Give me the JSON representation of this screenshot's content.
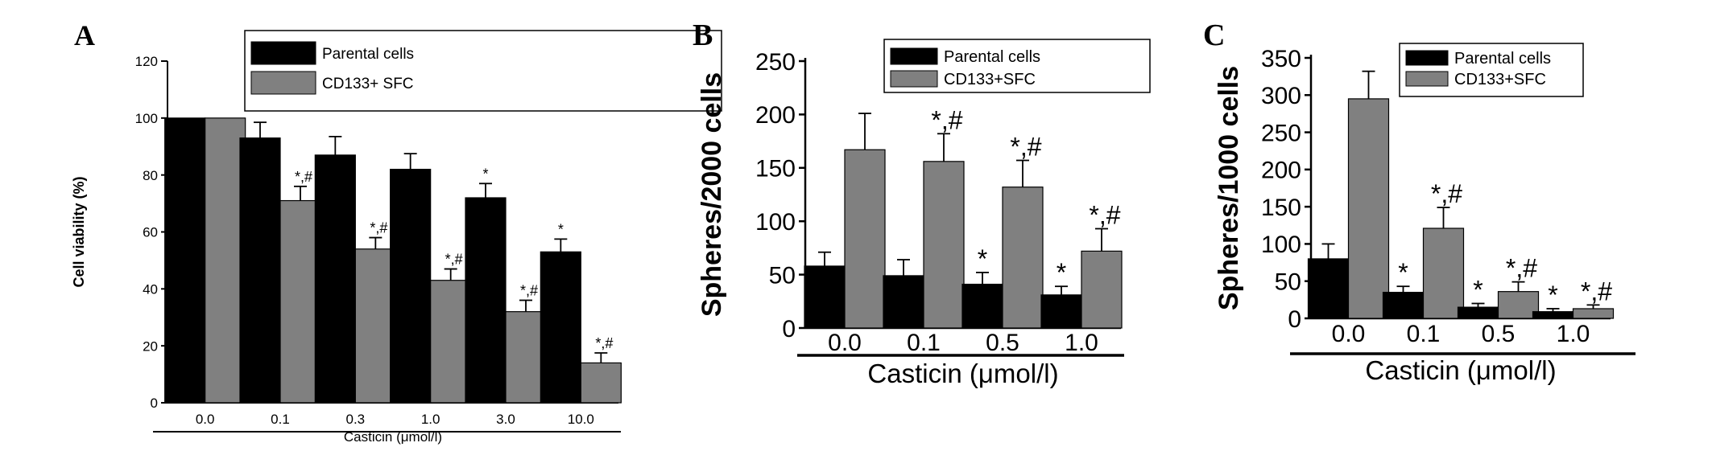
{
  "chart_data": [
    {
      "panel_label": "A",
      "type": "bar",
      "xlabel": "Casticin (μmol/l)",
      "ylabel": "Cell viability (%)",
      "ylim": [
        0,
        120
      ],
      "yticks": [
        "0",
        "20",
        "40",
        "60",
        "80",
        "100",
        "120"
      ],
      "categories": [
        "0.0",
        "0.1",
        "0.3",
        "1.0",
        "3.0",
        "10.0"
      ],
      "legend_position": "top-right",
      "series": [
        {
          "name": "Parental cells",
          "color": "#000000",
          "values": [
            100,
            93,
            87,
            82,
            72,
            53
          ],
          "errors": [
            0,
            5.5,
            6.5,
            5.5,
            5,
            4.5
          ],
          "annotations": [
            "",
            "",
            "",
            "",
            "*",
            "*"
          ]
        },
        {
          "name": "CD133+ SFC",
          "color": "#808080",
          "values": [
            100,
            71,
            54,
            43,
            32,
            14
          ],
          "errors": [
            0,
            5,
            4,
            4,
            4,
            3.5
          ],
          "annotations": [
            "",
            "*,#",
            "*,#",
            "*,#",
            "*,#",
            "*,#"
          ]
        }
      ]
    },
    {
      "panel_label": "B",
      "type": "bar",
      "xlabel": "Casticin (μmol/l)",
      "ylabel": "Spheres/2000 cells",
      "ylim": [
        0,
        250
      ],
      "yticks": [
        "0",
        "50",
        "100",
        "150",
        "200",
        "250"
      ],
      "categories": [
        "0.0",
        "0.1",
        "0.5",
        "1.0"
      ],
      "legend_position": "top-right",
      "series": [
        {
          "name": "Parental cells",
          "color": "#000000",
          "values": [
            58,
            49,
            41,
            31
          ],
          "errors": [
            13,
            15,
            11,
            8
          ],
          "annotations": [
            "",
            "",
            "*",
            "*"
          ]
        },
        {
          "name": "CD133+SFC",
          "color": "#808080",
          "values": [
            167,
            156,
            132,
            72
          ],
          "errors": [
            34,
            26,
            25,
            21
          ],
          "annotations": [
            "",
            "*,#",
            "*,#",
            "*,#"
          ]
        }
      ]
    },
    {
      "panel_label": "C",
      "type": "bar",
      "xlabel": "Casticin (μmol/l)",
      "ylabel": "Spheres/1000 cells",
      "ylim": [
        0,
        350
      ],
      "yticks": [
        "0",
        "50",
        "100",
        "150",
        "200",
        "250",
        "300",
        "350"
      ],
      "categories": [
        "0.0",
        "0.1",
        "0.5",
        "1.0"
      ],
      "legend_position": "top-right",
      "series": [
        {
          "name": "Parental cells",
          "color": "#000000",
          "values": [
            80,
            35,
            15,
            9
          ],
          "errors": [
            20,
            8,
            5,
            4
          ],
          "annotations": [
            "",
            "*",
            "*",
            "*"
          ]
        },
        {
          "name": "CD133+SFC",
          "color": "#808080",
          "values": [
            295,
            121,
            36,
            13
          ],
          "errors": [
            37,
            28,
            13,
            5
          ],
          "annotations": [
            "",
            "*,#",
            "*,#",
            "*,#"
          ]
        }
      ]
    }
  ]
}
